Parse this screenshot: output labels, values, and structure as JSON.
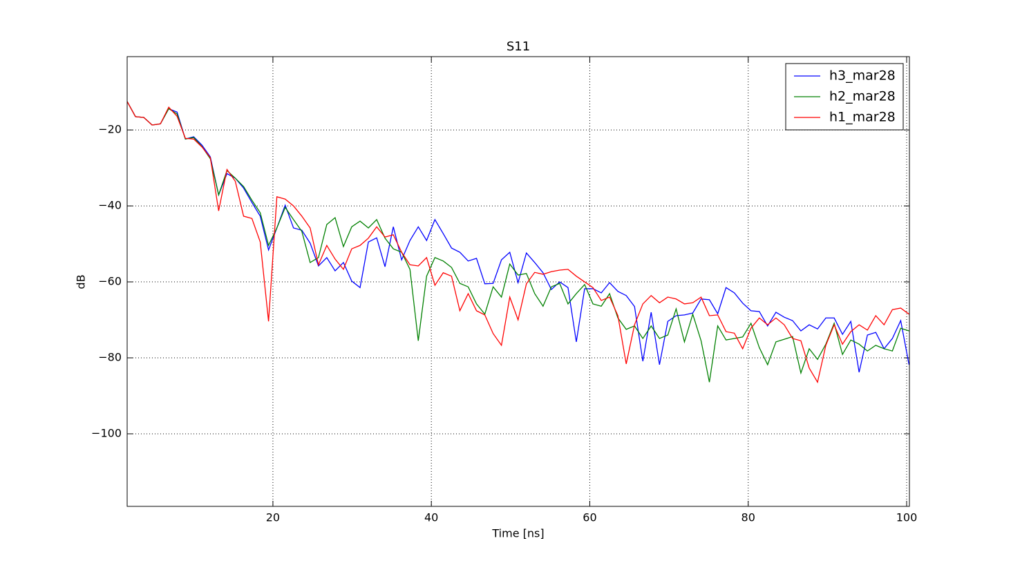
{
  "chart_data": {
    "type": "line",
    "title": "S11",
    "x_label": "Time [ns]",
    "y_label": "dB",
    "xlim": [
      1.6,
      100.35
    ],
    "ylim": [
      -119.1,
      -0.7
    ],
    "xticks": [
      20,
      40,
      60,
      80,
      100
    ],
    "yticks": [
      {
        "value": -100,
        "label": "−100"
      },
      {
        "value": -80,
        "label": "−80"
      },
      {
        "value": -60,
        "label": "−60"
      },
      {
        "value": -40,
        "label": "−40"
      },
      {
        "value": -20,
        "label": "−20"
      }
    ],
    "grid": true,
    "legend": "upper right",
    "x": [
      1.6,
      2.65,
      3.7,
      4.75,
      5.8,
      6.85,
      7.9,
      8.95,
      10,
      11.05,
      12.1,
      13.15,
      14.2,
      15.25,
      16.3,
      17.35,
      18.4,
      19.45,
      20.5,
      21.55,
      22.6,
      23.65,
      24.7,
      25.75,
      26.8,
      27.85,
      28.9,
      29.95,
      31,
      32.05,
      33.1,
      34.15,
      35.2,
      36.25,
      37.3,
      38.35,
      39.4,
      40.45,
      41.5,
      42.55,
      43.6,
      44.65,
      45.7,
      46.75,
      47.8,
      48.85,
      49.9,
      50.95,
      52,
      53.05,
      54.1,
      55.15,
      56.2,
      57.25,
      58.3,
      59.35,
      60.4,
      61.45,
      62.5,
      63.55,
      64.6,
      65.65,
      66.7,
      67.75,
      68.8,
      69.85,
      70.9,
      71.95,
      73,
      74.05,
      75.1,
      76.15,
      77.2,
      78.25,
      79.3,
      80.35,
      81.4,
      82.45,
      83.5,
      84.55,
      85.6,
      86.65,
      87.7,
      88.75,
      89.8,
      90.85,
      91.9,
      92.95,
      94,
      95.05,
      96.1,
      97.15,
      98.2,
      99.25,
      100.3
    ],
    "series": [
      {
        "name": "h3_mar28",
        "color": "#0000ff",
        "values": [
          -12.5,
          -16.5,
          -16.7,
          -18.7,
          -18.4,
          -14.4,
          -15.3,
          -22.4,
          -21.8,
          -24,
          -27.1,
          -37.1,
          -31.5,
          -32.7,
          -35.3,
          -39.1,
          -42.7,
          -51.6,
          -45.8,
          -39.8,
          -45.8,
          -46.4,
          -49.8,
          -55.8,
          -53.6,
          -57.1,
          -54.9,
          -59.8,
          -61.5,
          -49.5,
          -48.4,
          -56,
          -45.5,
          -54.2,
          -49.1,
          -45.5,
          -49.1,
          -43.6,
          -47.3,
          -51.1,
          -52.2,
          -54.5,
          -53.8,
          -60.5,
          -60.4,
          -54.2,
          -52.2,
          -60.2,
          -52.4,
          -54.9,
          -57.6,
          -62,
          -60,
          -61.5,
          -75.8,
          -61.8,
          -61.8,
          -62.9,
          -60.2,
          -62.5,
          -63.6,
          -66.5,
          -80.9,
          -68,
          -81.8,
          -70.4,
          -68.9,
          -68.7,
          -68.2,
          -64.5,
          -64.7,
          -68.4,
          -61.5,
          -62.9,
          -65.6,
          -67.6,
          -67.8,
          -71.6,
          -68,
          -69.3,
          -70.2,
          -72.9,
          -71.3,
          -72.4,
          -69.5,
          -69.5,
          -73.8,
          -70.4,
          -83.8,
          -74,
          -73.3,
          -77.6,
          -74.9,
          -70.2,
          -81.8
        ]
      },
      {
        "name": "h2_mar28",
        "color": "#008000",
        "values": [
          -12.5,
          -16.5,
          -16.7,
          -18.7,
          -18.4,
          -14.4,
          -15.8,
          -22.4,
          -22,
          -24.4,
          -27.6,
          -37.1,
          -30.7,
          -32.7,
          -34.9,
          -38.5,
          -41.8,
          -50.4,
          -45.8,
          -40.4,
          -43.6,
          -46.7,
          -54.9,
          -53.6,
          -44.9,
          -43.1,
          -50.7,
          -45.5,
          -44,
          -45.8,
          -43.6,
          -48.5,
          -51.3,
          -52.2,
          -56.7,
          -75.5,
          -58.5,
          -53.6,
          -54.5,
          -56.2,
          -60.4,
          -61.3,
          -65.8,
          -68.5,
          -61.3,
          -64,
          -55.3,
          -58.2,
          -57.8,
          -63.1,
          -66.4,
          -61.3,
          -60.4,
          -65.8,
          -63.1,
          -60.7,
          -65.8,
          -66.4,
          -63.1,
          -69.5,
          -72.5,
          -71.6,
          -74.9,
          -71.6,
          -74.9,
          -74,
          -67.1,
          -75.8,
          -68.5,
          -75.5,
          -86.4,
          -71.6,
          -75.3,
          -74.9,
          -74.5,
          -70.9,
          -77.3,
          -81.8,
          -75.8,
          -75.1,
          -74.4,
          -84,
          -77.6,
          -80.4,
          -76.4,
          -70.9,
          -79.1,
          -75.3,
          -76.4,
          -78.2,
          -76.7,
          -77.6,
          -78.2,
          -72.2,
          -72.9
        ]
      },
      {
        "name": "h1_mar28",
        "color": "#ff0000",
        "values": [
          -12.5,
          -16.5,
          -16.7,
          -18.7,
          -18.4,
          -14,
          -16.4,
          -22.2,
          -22.4,
          -24.5,
          -27.3,
          -41.3,
          -30.4,
          -33.5,
          -42.7,
          -43.3,
          -49.5,
          -70.4,
          -37.6,
          -38.2,
          -40,
          -42.7,
          -45.8,
          -55.5,
          -50.4,
          -54,
          -56.7,
          -51.3,
          -50.4,
          -48.5,
          -45.5,
          -48.2,
          -47.6,
          -52.2,
          -55.5,
          -55.8,
          -53.6,
          -60.9,
          -57.6,
          -58.5,
          -67.6,
          -63.1,
          -67.6,
          -68.7,
          -73.6,
          -76.7,
          -64,
          -70,
          -60.5,
          -57.5,
          -58,
          -57.3,
          -56.9,
          -56.7,
          -58.5,
          -60,
          -61.5,
          -64.9,
          -64,
          -68.9,
          -81.6,
          -71.3,
          -65.8,
          -63.6,
          -65.5,
          -64,
          -64.5,
          -65.8,
          -65.5,
          -64,
          -68.9,
          -68.7,
          -73.1,
          -73.5,
          -77.6,
          -72.2,
          -69.5,
          -71.3,
          -69.5,
          -71.3,
          -74.9,
          -75.5,
          -82.7,
          -86.4,
          -76.7,
          -71.3,
          -76.4,
          -73.1,
          -71.3,
          -72.7,
          -68.9,
          -71.3,
          -67.3,
          -66.9,
          -68.5
        ]
      }
    ]
  }
}
